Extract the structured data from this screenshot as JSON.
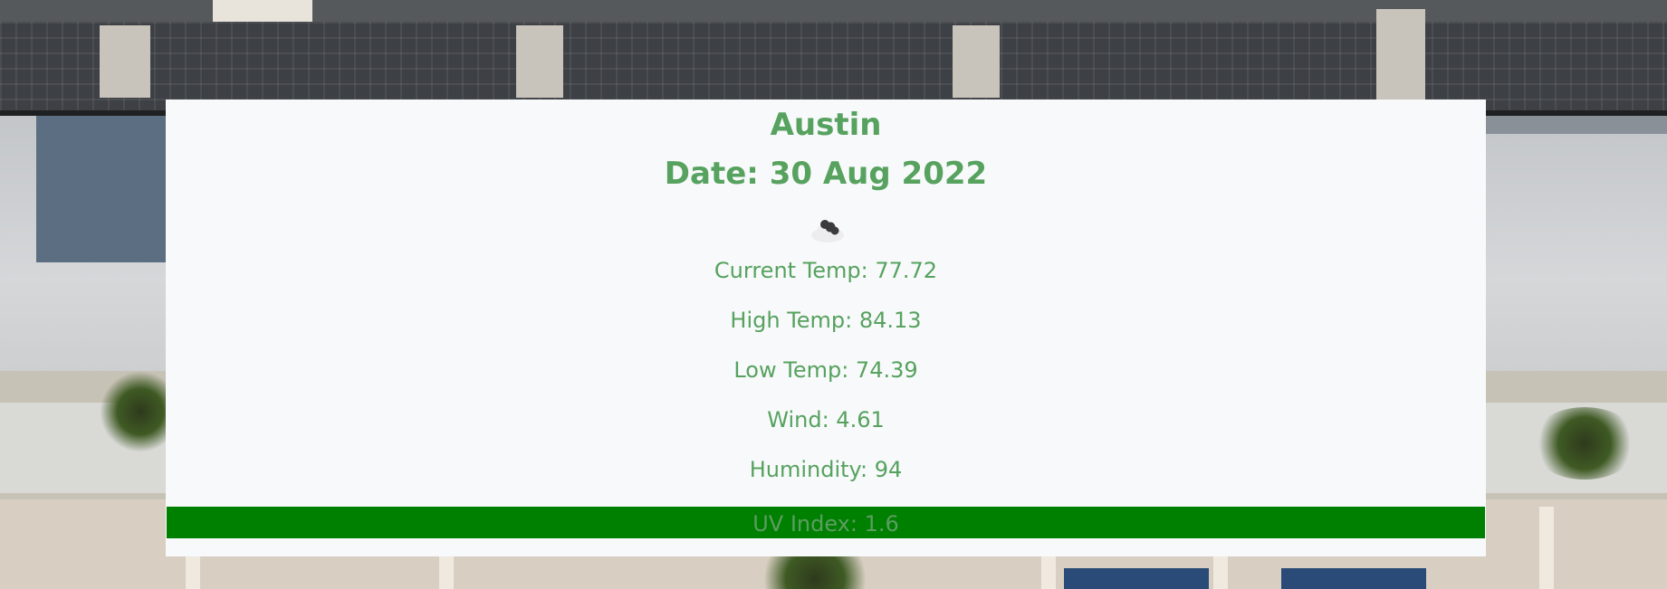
{
  "weather": {
    "city": "Austin",
    "date": "Date: 30 Aug 2022",
    "icon": "scattered-clouds-icon",
    "current_temp": "Current Temp: 77.72",
    "high_temp": "High Temp: 84.13",
    "low_temp": "Low Temp: 74.39",
    "wind": "Wind: 4.61",
    "humidity": "Humindity: 94",
    "uv_index": "UV Index: 1.6"
  },
  "colors": {
    "text_accent": "#56a25e",
    "uv_bar": "#008000",
    "card_background": "#f8f9fb"
  }
}
